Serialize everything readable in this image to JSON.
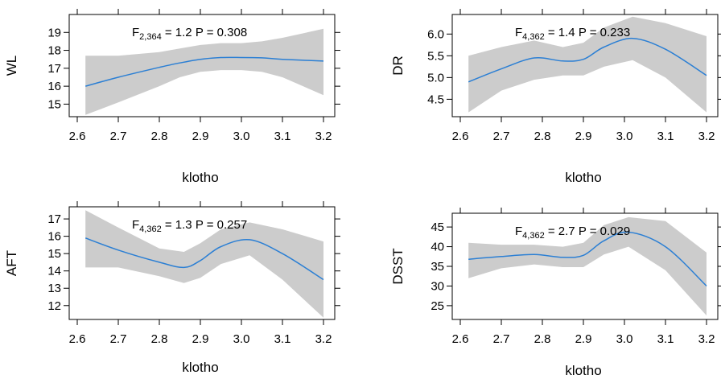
{
  "colors": {
    "line": "#2b7fd4",
    "band": "#cccccc",
    "frame": "#000000"
  },
  "chart_data": [
    {
      "type": "line",
      "ylabel": "WL",
      "xlabel": "klotho",
      "annotation": {
        "stat": "F",
        "df": "2,364",
        "f": "1.2",
        "p_text": "P = 0.308"
      },
      "xticks": [
        "2.6",
        "2.7",
        "2.8",
        "2.9",
        "3.0",
        "3.1",
        "3.2"
      ],
      "yticks": [
        "15",
        "16",
        "17",
        "18",
        "19"
      ],
      "xlim": [
        2.6,
        3.2
      ],
      "ylim": [
        14.3,
        20.0
      ],
      "x": [
        2.62,
        2.7,
        2.8,
        2.85,
        2.9,
        2.95,
        3.0,
        3.05,
        3.1,
        3.2
      ],
      "y": [
        16.0,
        16.5,
        17.05,
        17.3,
        17.5,
        17.6,
        17.6,
        17.58,
        17.5,
        17.4
      ],
      "lower": [
        14.4,
        15.1,
        16.0,
        16.5,
        16.8,
        16.9,
        16.9,
        16.8,
        16.5,
        15.5
      ],
      "upper": [
        17.7,
        17.7,
        17.9,
        18.1,
        18.3,
        18.4,
        18.4,
        18.5,
        18.7,
        19.2
      ]
    },
    {
      "type": "line",
      "ylabel": "DR",
      "xlabel": "klotho",
      "annotation": {
        "stat": "F",
        "df": "4,362",
        "f": "1.4",
        "p_text": "P = 0.233"
      },
      "xticks": [
        "2.6",
        "2.7",
        "2.8",
        "2.9",
        "3.0",
        "3.1",
        "3.2"
      ],
      "yticks": [
        "4.5",
        "5.0",
        "5.5",
        "6.0"
      ],
      "xlim": [
        2.6,
        3.2
      ],
      "ylim": [
        4.1,
        6.45
      ],
      "x": [
        2.62,
        2.7,
        2.78,
        2.85,
        2.9,
        2.95,
        3.02,
        3.1,
        3.2
      ],
      "y": [
        4.9,
        5.2,
        5.45,
        5.38,
        5.42,
        5.7,
        5.9,
        5.65,
        5.05
      ],
      "lower": [
        4.2,
        4.7,
        4.95,
        5.05,
        5.05,
        5.25,
        5.4,
        5.0,
        4.2
      ],
      "upper": [
        5.5,
        5.7,
        5.85,
        5.7,
        5.8,
        6.15,
        6.4,
        6.25,
        5.95
      ]
    },
    {
      "type": "line",
      "ylabel": "AFT",
      "xlabel": "klotho",
      "annotation": {
        "stat": "F",
        "df": "4,362",
        "f": "1.3",
        "p_text": "P = 0.257"
      },
      "xticks": [
        "2.6",
        "2.7",
        "2.8",
        "2.9",
        "3.0",
        "3.1",
        "3.2"
      ],
      "yticks": [
        "12",
        "13",
        "14",
        "15",
        "16",
        "17"
      ],
      "xlim": [
        2.6,
        3.2
      ],
      "ylim": [
        11.2,
        17.7
      ],
      "x": [
        2.62,
        2.7,
        2.8,
        2.86,
        2.9,
        2.95,
        3.02,
        3.1,
        3.2
      ],
      "y": [
        15.9,
        15.2,
        14.5,
        14.2,
        14.6,
        15.4,
        15.8,
        15.0,
        13.5
      ],
      "lower": [
        14.2,
        14.2,
        13.7,
        13.3,
        13.6,
        14.4,
        14.9,
        13.5,
        11.3
      ],
      "upper": [
        17.5,
        16.5,
        15.3,
        15.1,
        15.6,
        16.4,
        16.8,
        16.4,
        15.7
      ]
    },
    {
      "type": "line",
      "ylabel": "DSST",
      "xlabel": "klotho",
      "annotation": {
        "stat": "F",
        "df": "4,362",
        "f": "2.7",
        "p_text": "P = 0.029"
      },
      "xticks": [
        "2.6",
        "2.7",
        "2.8",
        "2.9",
        "3.0",
        "3.1",
        "3.2"
      ],
      "yticks": [
        "25",
        "30",
        "35",
        "40",
        "45"
      ],
      "xlim": [
        2.6,
        3.2
      ],
      "ylim": [
        21.5,
        48.5
      ],
      "x": [
        2.62,
        2.7,
        2.78,
        2.85,
        2.9,
        2.95,
        3.01,
        3.1,
        3.2
      ],
      "y": [
        36.8,
        37.5,
        38.0,
        37.3,
        37.8,
        41.5,
        43.7,
        40.0,
        30.0
      ],
      "lower": [
        32.0,
        34.5,
        35.5,
        34.8,
        34.8,
        38.0,
        40.0,
        34.0,
        22.5
      ],
      "upper": [
        41.0,
        40.5,
        40.5,
        40.0,
        41.0,
        45.5,
        47.5,
        46.5,
        38.5
      ]
    }
  ]
}
